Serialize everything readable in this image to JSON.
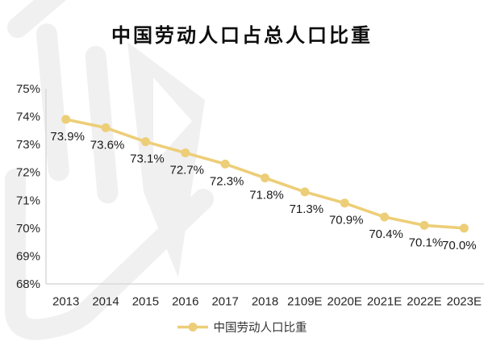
{
  "title": "中国劳动人口占总人口比重",
  "legend": {
    "label": "中国劳动人口比重"
  },
  "colors": {
    "line": "#EDCE78",
    "axis": "#D9D9D9",
    "tick_text": "#262626",
    "label_text": "#1A1A1A",
    "title_text": "#0D0D0D",
    "watermark": "#F0F0F0"
  },
  "icons": {
    "legend_marker": "line-dot-marker"
  },
  "chart_data": {
    "type": "line",
    "title": "中国劳动人口占总人口比重",
    "categories": [
      "2013",
      "2014",
      "2015",
      "2016",
      "2017",
      "2018",
      "2109E",
      "2020E",
      "2021E",
      "2022E",
      "2023E"
    ],
    "series": [
      {
        "name": "中国劳动人口比重",
        "values": [
          73.9,
          73.6,
          73.1,
          72.7,
          72.3,
          71.8,
          71.3,
          70.9,
          70.4,
          70.1,
          70.0
        ]
      }
    ],
    "data_labels": [
      "73.9%",
      "73.6%",
      "73.1%",
      "72.7%",
      "72.3%",
      "71.8%",
      "71.3%",
      "70.9%",
      "70.4%",
      "70.1%",
      "70.0%"
    ],
    "y_ticks": [
      "75%",
      "74%",
      "73%",
      "72%",
      "71%",
      "70%",
      "69%",
      "68%"
    ],
    "ylim": [
      68,
      75
    ],
    "grid": false,
    "legend_position": "bottom",
    "line_color": "#EDCE78"
  }
}
